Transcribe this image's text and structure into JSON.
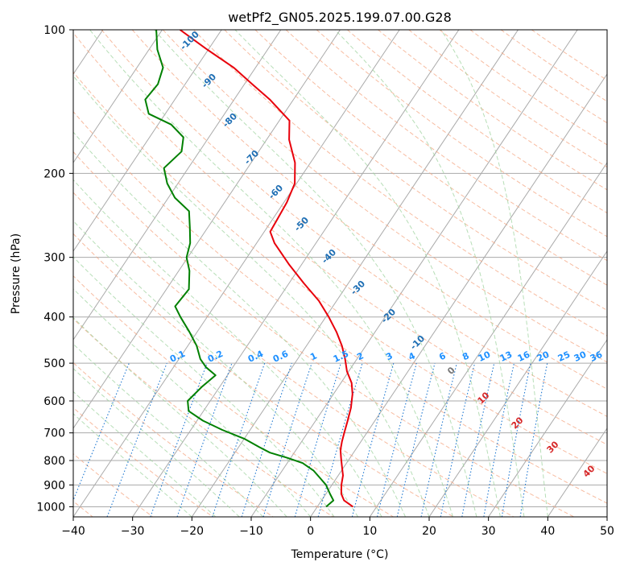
{
  "chart_data": {
    "type": "line",
    "subtype": "skew-t log-p diagram",
    "title": "wetPf2_GN05.2025.199.07.00.G28",
    "xlabel": "Temperature (°C)",
    "ylabel": "Pressure (hPa)",
    "xlim": [
      -40,
      50
    ],
    "ylim": [
      1050,
      100
    ],
    "y_scale": "log",
    "grid": true,
    "x_ticks": [
      -40,
      -30,
      -20,
      -10,
      0,
      10,
      20,
      30,
      40,
      50
    ],
    "x_tick_labels": [
      "−40",
      "−30",
      "−20",
      "−10",
      "0",
      "10",
      "20",
      "30",
      "40",
      "50"
    ],
    "y_ticks": [
      1000,
      900,
      800,
      700,
      600,
      500,
      400,
      300,
      200,
      100
    ],
    "y_tick_labels": [
      "1000",
      "900",
      "800",
      "700",
      "600",
      "500",
      "400",
      "300",
      "200",
      "100"
    ],
    "colors": {
      "temperature": "#e8000b",
      "dewpoint": "#008000",
      "isotherm": "#aaaaaa",
      "dry_adiabat": "#f4a582",
      "moist_adiabat": "#9fd39f",
      "mixing_ratio": "#1f78d1",
      "isotherm_label_cold": "#1f6fb4",
      "isotherm_label_warm": "#d62728",
      "isotherm_label_zero": "#777777",
      "mixing_label": "#1e90ff",
      "edge_curve": "#d8c3a5"
    },
    "series": [
      {
        "name": "Temperature",
        "points": [
          [
            1000,
            6.0
          ],
          [
            970,
            3.8
          ],
          [
            940,
            2.6
          ],
          [
            900,
            1.6
          ],
          [
            860,
            0.8
          ],
          [
            820,
            -0.5
          ],
          [
            790,
            -1.5
          ],
          [
            760,
            -2.5
          ],
          [
            730,
            -3.2
          ],
          [
            700,
            -3.8
          ],
          [
            660,
            -4.6
          ],
          [
            620,
            -5.5
          ],
          [
            580,
            -6.8
          ],
          [
            550,
            -8.2
          ],
          [
            520,
            -10.3
          ],
          [
            490,
            -12.0
          ],
          [
            460,
            -14.0
          ],
          [
            430,
            -16.5
          ],
          [
            400,
            -19.5
          ],
          [
            370,
            -23.0
          ],
          [
            340,
            -27.5
          ],
          [
            310,
            -32.2
          ],
          [
            280,
            -37.0
          ],
          [
            265,
            -39.0
          ],
          [
            250,
            -39.2
          ],
          [
            230,
            -39.5
          ],
          [
            210,
            -40.3
          ],
          [
            190,
            -42.6
          ],
          [
            170,
            -46.2
          ],
          [
            155,
            -48.3
          ],
          [
            140,
            -54.0
          ],
          [
            130,
            -58.7
          ],
          [
            120,
            -63.7
          ],
          [
            110,
            -70.2
          ],
          [
            100,
            -77.0
          ]
        ]
      },
      {
        "name": "Dewpoint",
        "points": [
          [
            1000,
            1.5
          ],
          [
            970,
            2.0
          ],
          [
            940,
            0.7
          ],
          [
            900,
            -1.0
          ],
          [
            870,
            -2.8
          ],
          [
            840,
            -4.7
          ],
          [
            810,
            -7.4
          ],
          [
            790,
            -10.5
          ],
          [
            770,
            -14.1
          ],
          [
            750,
            -16.5
          ],
          [
            720,
            -20.0
          ],
          [
            690,
            -24.7
          ],
          [
            660,
            -29.0
          ],
          [
            630,
            -32.5
          ],
          [
            600,
            -33.8
          ],
          [
            560,
            -33.0
          ],
          [
            530,
            -32.0
          ],
          [
            510,
            -34.5
          ],
          [
            490,
            -36.4
          ],
          [
            460,
            -38.5
          ],
          [
            430,
            -41.3
          ],
          [
            400,
            -44.5
          ],
          [
            380,
            -46.6
          ],
          [
            350,
            -46.2
          ],
          [
            320,
            -48.2
          ],
          [
            300,
            -50.2
          ],
          [
            280,
            -51.2
          ],
          [
            260,
            -53.0
          ],
          [
            240,
            -55.0
          ],
          [
            225,
            -58.9
          ],
          [
            210,
            -61.8
          ],
          [
            195,
            -64.1
          ],
          [
            180,
            -63.0
          ],
          [
            168,
            -64.3
          ],
          [
            158,
            -67.8
          ],
          [
            150,
            -72.8
          ],
          [
            140,
            -75.0
          ],
          [
            130,
            -74.6
          ],
          [
            120,
            -75.6
          ],
          [
            110,
            -78.6
          ],
          [
            100,
            -81.0
          ]
        ]
      }
    ],
    "isotherm_labels": [
      "-100",
      "-90",
      "-80",
      "-70",
      "-60",
      "-50",
      "-40",
      "-30",
      "-20",
      "-10",
      "0",
      "10",
      "20",
      "30",
      "40"
    ],
    "mixing_ratio_labels": [
      "0.1",
      "0.2",
      "0.4",
      "0.6",
      "1",
      "1.5",
      "2",
      "3",
      "4",
      "6",
      "8",
      "10",
      "13",
      "16",
      "20",
      "25",
      "30",
      "36"
    ],
    "mixing_ratio_values": [
      0.1,
      0.2,
      0.4,
      0.6,
      1,
      1.5,
      2,
      3,
      4,
      6,
      8,
      10,
      13,
      16,
      20,
      25,
      30,
      36
    ]
  }
}
